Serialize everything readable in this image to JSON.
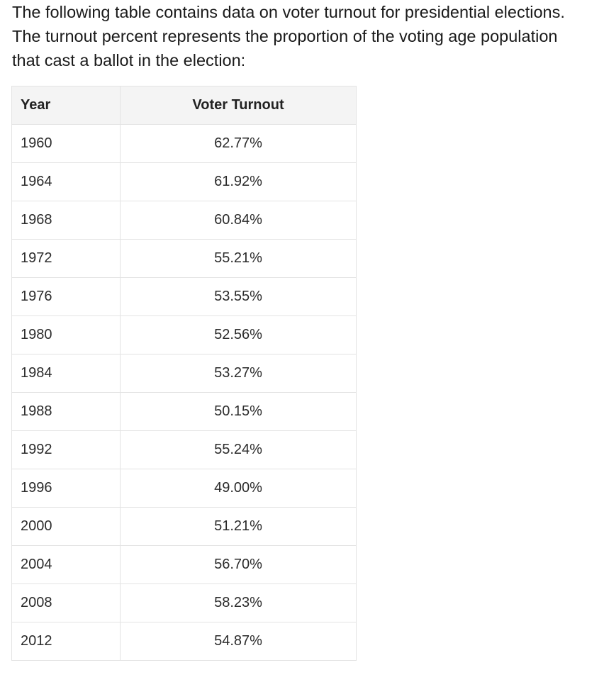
{
  "intro_text": "The following table contains data on voter turnout for presidential elections. The turnout percent represents the proportion of the voting age population that cast a ballot in the election:",
  "table": {
    "headers": {
      "year": "Year",
      "turnout": "Voter Turnout"
    },
    "rows": [
      {
        "year": "1960",
        "turnout": "62.77%"
      },
      {
        "year": "1964",
        "turnout": "61.92%"
      },
      {
        "year": "1968",
        "turnout": "60.84%"
      },
      {
        "year": "1972",
        "turnout": "55.21%"
      },
      {
        "year": "1976",
        "turnout": "53.55%"
      },
      {
        "year": "1980",
        "turnout": "52.56%"
      },
      {
        "year": "1984",
        "turnout": "53.27%"
      },
      {
        "year": "1988",
        "turnout": "50.15%"
      },
      {
        "year": "1992",
        "turnout": "55.24%"
      },
      {
        "year": "1996",
        "turnout": "49.00%"
      },
      {
        "year": "2000",
        "turnout": "51.21%"
      },
      {
        "year": "2004",
        "turnout": "56.70%"
      },
      {
        "year": "2008",
        "turnout": "58.23%"
      },
      {
        "year": "2012",
        "turnout": "54.87%"
      }
    ]
  }
}
